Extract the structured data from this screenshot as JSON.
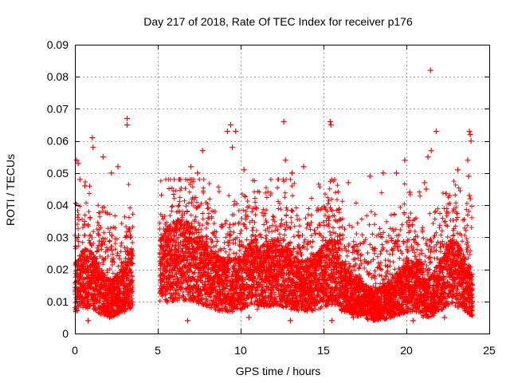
{
  "chart_data": {
    "type": "scatter",
    "title": "Day 217 of 2018, Rate Of TEC Index for receiver p176",
    "xlabel": "GPS time / hours",
    "ylabel": "ROTI / TECUs",
    "xlim": [
      0,
      25
    ],
    "ylim": [
      0,
      0.09
    ],
    "xticks": [
      "0",
      "5",
      "10",
      "15",
      "20",
      "25"
    ],
    "xtick_values": [
      0,
      5,
      10,
      15,
      20,
      25
    ],
    "yticks": [
      "0",
      "0.01",
      "0.02",
      "0.03",
      "0.04",
      "0.05",
      "0.06",
      "0.07",
      "0.08",
      "0.09"
    ],
    "ytick_values": [
      0,
      0.01,
      0.02,
      0.03,
      0.04,
      0.05,
      0.06,
      0.07,
      0.08,
      0.09
    ],
    "grid": true,
    "marker": "+",
    "color": "#ff0000",
    "data_gap_hours": [
      3.5,
      5.1
    ],
    "series": [
      {
        "points": [
          [
            0.1,
            0.054
          ],
          [
            0.2,
            0.053
          ],
          [
            0.3,
            0.048
          ],
          [
            0.6,
            0.046
          ],
          [
            1.05,
            0.061
          ],
          [
            1.1,
            0.058
          ],
          [
            1.7,
            0.055
          ],
          [
            2.2,
            0.05
          ],
          [
            2.6,
            0.052
          ],
          [
            3.15,
            0.067
          ],
          [
            3.15,
            0.065
          ],
          [
            7.0,
            0.052
          ],
          [
            7.4,
            0.05
          ],
          [
            7.7,
            0.057
          ],
          [
            9.2,
            0.063
          ],
          [
            9.4,
            0.065
          ],
          [
            9.5,
            0.058
          ],
          [
            9.7,
            0.063
          ],
          [
            10.2,
            0.051
          ],
          [
            12.6,
            0.066
          ],
          [
            12.7,
            0.054
          ],
          [
            13.1,
            0.05
          ],
          [
            13.8,
            0.052
          ],
          [
            15.4,
            0.066
          ],
          [
            15.45,
            0.065
          ],
          [
            16.5,
            0.047
          ],
          [
            17.8,
            0.049
          ],
          [
            18.6,
            0.05
          ],
          [
            19.4,
            0.05
          ],
          [
            19.9,
            0.054
          ],
          [
            20.2,
            0.044
          ],
          [
            21.1,
            0.047
          ],
          [
            21.2,
            0.045
          ],
          [
            21.3,
            0.055
          ],
          [
            21.45,
            0.082
          ],
          [
            21.5,
            0.057
          ],
          [
            21.8,
            0.063
          ],
          [
            22.6,
            0.043
          ],
          [
            23.1,
            0.051
          ],
          [
            23.8,
            0.063
          ],
          [
            23.85,
            0.062
          ],
          [
            23.9,
            0.06
          ],
          [
            23.7,
            0.054
          ],
          [
            23.75,
            0.049
          ],
          [
            23.8,
            0.043
          ],
          [
            23.85,
            0.042
          ],
          [
            0.8,
            0.004
          ],
          [
            2.1,
            0.005
          ],
          [
            6.8,
            0.004
          ],
          [
            10.5,
            0.005
          ],
          [
            13.0,
            0.004
          ],
          [
            15.5,
            0.004
          ],
          [
            16.8,
            0.005
          ],
          [
            20.4,
            0.004
          ],
          [
            22.3,
            0.005
          ]
        ]
      }
    ]
  }
}
